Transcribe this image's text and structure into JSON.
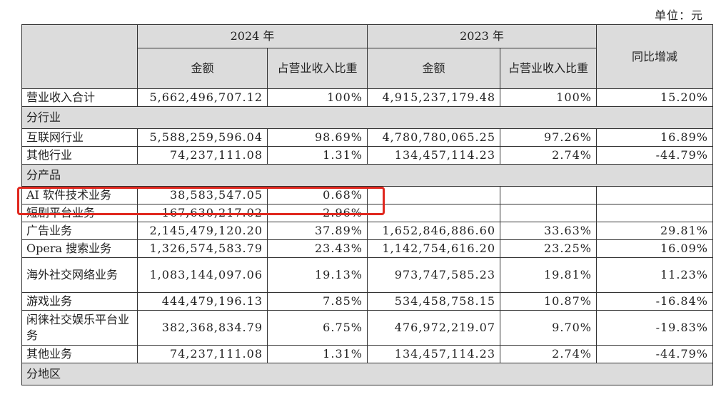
{
  "unit_label": "单位：元",
  "header": {
    "year_2024": "2024 年",
    "year_2023": "2023 年",
    "amount": "金额",
    "ratio": "占营业收入比重",
    "yoy": "同比增减"
  },
  "rows": [
    {
      "type": "data",
      "label": "营业收入合计",
      "a2024": "5,662,496,707.12",
      "r2024": "100%",
      "a2023": "4,915,237,179.48",
      "r2023": "100%",
      "yoy": "15.20%"
    },
    {
      "type": "section",
      "label": "分行业"
    },
    {
      "type": "data",
      "label": "互联网行业",
      "a2024": "5,588,259,596.04",
      "r2024": "98.69%",
      "a2023": "4,780,780,065.25",
      "r2023": "97.26%",
      "yoy": "16.89%"
    },
    {
      "type": "data",
      "label": "其他行业",
      "a2024": "74,237,111.08",
      "r2024": "1.31%",
      "a2023": "134,457,114.23",
      "r2023": "2.74%",
      "yoy": "-44.79%"
    },
    {
      "type": "section",
      "label": "分产品"
    },
    {
      "type": "data",
      "label": "AI 软件技术业务",
      "a2024": "38,583,547.05",
      "r2024": "0.68%",
      "a2023": "",
      "r2023": "",
      "yoy": ""
    },
    {
      "type": "data",
      "label": "短剧平台业务",
      "a2024": "167,630,217.02",
      "r2024": "2.96%",
      "a2023": "",
      "r2023": "",
      "yoy": ""
    },
    {
      "type": "data",
      "label": "广告业务",
      "a2024": "2,145,479,120.20",
      "r2024": "37.89%",
      "a2023": "1,652,846,886.60",
      "r2023": "33.63%",
      "yoy": "29.81%"
    },
    {
      "type": "data",
      "label": "Opera 搜索业务",
      "a2024": "1,326,574,583.79",
      "r2024": "23.43%",
      "a2023": "1,142,754,616.20",
      "r2023": "23.25%",
      "yoy": "16.09%"
    },
    {
      "type": "tall",
      "label": "海外社交网络业务",
      "a2024": "1,083,144,097.06",
      "r2024": "19.13%",
      "a2023": "973,747,585.23",
      "r2023": "19.81%",
      "yoy": "11.23%"
    },
    {
      "type": "data",
      "label": "游戏业务",
      "a2024": "444,479,196.13",
      "r2024": "7.85%",
      "a2023": "534,458,758.15",
      "r2023": "10.87%",
      "yoy": "-16.84%"
    },
    {
      "type": "tall",
      "label": "闲徕社交娱乐平台业务",
      "a2024": "382,368,834.79",
      "r2024": "6.75%",
      "a2023": "476,972,219.07",
      "r2023": "9.70%",
      "yoy": "-19.83%"
    },
    {
      "type": "data",
      "label": "其他业务",
      "a2024": "74,237,111.08",
      "r2024": "1.31%",
      "a2023": "134,457,114.23",
      "r2023": "2.74%",
      "yoy": "-44.79%"
    },
    {
      "type": "section",
      "label": "分地区"
    }
  ],
  "colors": {
    "header_bg": "#dcdcdc",
    "border": "#333333",
    "highlight": "#e0271e"
  }
}
